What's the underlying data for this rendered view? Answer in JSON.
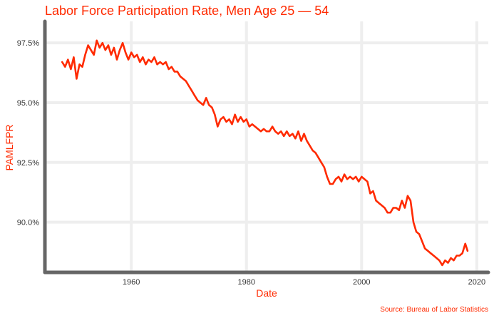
{
  "chart_data": {
    "type": "line",
    "title": "Labor Force Participation Rate, Men Age 25 — 54",
    "xlabel": "Date",
    "ylabel": "PAMLFPR",
    "source": "Source: Bureau of Labor Statistics",
    "xlim": [
      1945,
      2022
    ],
    "ylim": [
      87.9,
      98.4
    ],
    "x_ticks": [
      {
        "value": 1960,
        "label": "1960"
      },
      {
        "value": 1980,
        "label": "1980"
      },
      {
        "value": 2000,
        "label": "2000"
      },
      {
        "value": 2020,
        "label": "2020"
      }
    ],
    "y_ticks": [
      {
        "value": 90.0,
        "label": "90.0%"
      },
      {
        "value": 92.5,
        "label": "92.5%"
      },
      {
        "value": 95.0,
        "label": "95.0%"
      },
      {
        "value": 97.5,
        "label": "97.5%"
      }
    ],
    "grid": true,
    "line_color": "#ff2a00",
    "series": [
      {
        "x": [
          1948.0,
          1948.5,
          1949.0,
          1949.5,
          1950.0,
          1950.5,
          1951.0,
          1951.5,
          1952.0,
          1952.5,
          1953.0,
          1953.5,
          1954.0,
          1954.5,
          1955.0,
          1955.5,
          1956.0,
          1956.5,
          1957.0,
          1957.5,
          1958.0,
          1958.5,
          1959.0,
          1959.5,
          1960.0,
          1960.5,
          1961.0,
          1961.5,
          1962.0,
          1962.5,
          1963.0,
          1963.5,
          1964.0,
          1964.5,
          1965.0,
          1965.5,
          1966.0,
          1966.5,
          1967.0,
          1967.5,
          1968.0,
          1968.5,
          1969.0,
          1969.5,
          1970.0,
          1970.5,
          1971.0,
          1971.5,
          1972.0,
          1972.5,
          1973.0,
          1973.5,
          1974.0,
          1974.5,
          1975.0,
          1975.5,
          1976.0,
          1976.5,
          1977.0,
          1977.5,
          1978.0,
          1978.5,
          1979.0,
          1979.5,
          1980.0,
          1980.5,
          1981.0,
          1981.5,
          1982.0,
          1982.5,
          1983.0,
          1983.5,
          1984.0,
          1984.5,
          1985.0,
          1985.5,
          1986.0,
          1986.5,
          1987.0,
          1987.5,
          1988.0,
          1988.5,
          1989.0,
          1989.5,
          1990.0,
          1990.5,
          1991.0,
          1991.5,
          1992.0,
          1992.5,
          1993.0,
          1993.5,
          1994.0,
          1994.5,
          1995.0,
          1995.5,
          1996.0,
          1996.5,
          1997.0,
          1997.5,
          1998.0,
          1998.5,
          1999.0,
          1999.5,
          2000.0,
          2000.5,
          2001.0,
          2001.5,
          2002.0,
          2002.5,
          2003.0,
          2003.5,
          2004.0,
          2004.5,
          2005.0,
          2005.5,
          2006.0,
          2006.5,
          2007.0,
          2007.5,
          2008.0,
          2008.5,
          2009.0,
          2009.5,
          2010.0,
          2010.5,
          2011.0,
          2011.5,
          2012.0,
          2012.5,
          2013.0,
          2013.5,
          2014.0,
          2014.5,
          2015.0,
          2015.5,
          2016.0,
          2016.5,
          2017.0,
          2017.5,
          2018.0,
          2018.4
        ],
        "y": [
          96.7,
          96.5,
          96.8,
          96.4,
          96.9,
          96.0,
          96.6,
          96.5,
          97.0,
          97.4,
          97.2,
          97.0,
          97.6,
          97.3,
          97.5,
          97.2,
          97.4,
          97.0,
          97.3,
          96.8,
          97.2,
          97.5,
          97.1,
          96.8,
          97.1,
          96.9,
          97.0,
          96.7,
          96.9,
          96.6,
          96.8,
          96.7,
          96.9,
          96.6,
          96.7,
          96.6,
          96.7,
          96.4,
          96.5,
          96.3,
          96.3,
          96.1,
          96.0,
          95.9,
          95.7,
          95.5,
          95.3,
          95.1,
          95.0,
          94.9,
          95.2,
          94.9,
          94.8,
          94.5,
          94.0,
          94.3,
          94.4,
          94.2,
          94.3,
          94.1,
          94.5,
          94.2,
          94.4,
          94.2,
          94.3,
          94.0,
          94.1,
          94.0,
          93.9,
          93.8,
          93.9,
          93.8,
          93.8,
          94.0,
          93.8,
          93.7,
          93.8,
          93.6,
          93.8,
          93.6,
          93.7,
          93.5,
          93.8,
          93.4,
          93.7,
          93.4,
          93.2,
          93.0,
          92.9,
          92.7,
          92.5,
          92.3,
          91.9,
          91.6,
          91.6,
          91.8,
          91.9,
          91.7,
          92.0,
          91.8,
          91.9,
          91.8,
          91.9,
          91.7,
          91.9,
          91.8,
          91.7,
          91.2,
          91.3,
          90.9,
          90.8,
          90.7,
          90.6,
          90.4,
          90.4,
          90.6,
          90.6,
          90.5,
          90.9,
          90.6,
          91.1,
          90.9,
          90.0,
          89.6,
          89.5,
          89.2,
          88.9,
          88.8,
          88.7,
          88.6,
          88.5,
          88.4,
          88.2,
          88.4,
          88.3,
          88.5,
          88.4,
          88.6,
          88.6,
          88.7,
          89.1,
          88.8
        ]
      }
    ]
  }
}
